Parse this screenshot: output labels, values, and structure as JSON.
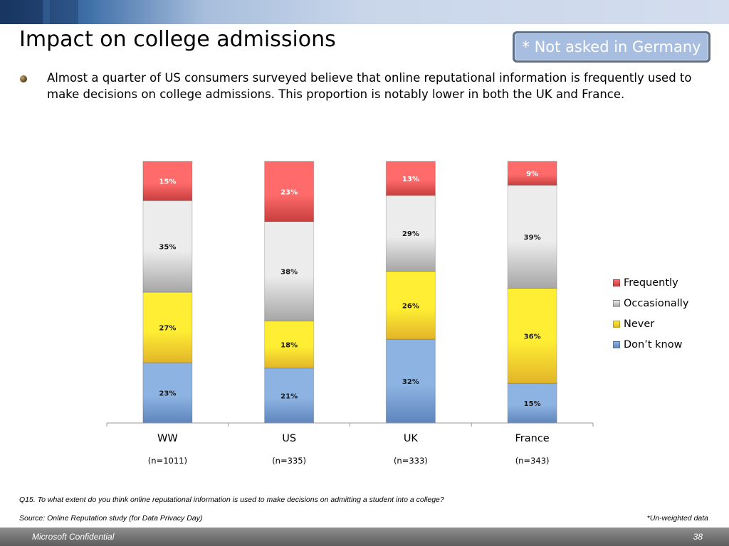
{
  "slide": {
    "title": "Impact on college admissions",
    "note": "* Not asked in Germany",
    "bullet": "Almost a quarter of US consumers surveyed believe that online reputational information is frequently used to make decisions on college admissions. This proportion is notably lower in both the UK and France.",
    "question": "Q15. To what extent do you think online reputational information is used to make decisions on admitting a student into a college?",
    "source": "Source: Online Reputation study (for Data Privacy Day)",
    "weighting_note": "*Un-weighted data",
    "footer_left": "Microsoft Confidential",
    "page_number": "38"
  },
  "chart_data": {
    "type": "bar",
    "stacked": true,
    "percent_stacked": true,
    "categories": [
      "WW",
      "US",
      "UK",
      "France"
    ],
    "sample_sizes": [
      "(n=1011)",
      "(n=335)",
      "(n=333)",
      "(n=343)"
    ],
    "series": [
      {
        "name": "Don’t know",
        "values": [
          23,
          21,
          32,
          15
        ],
        "color": "#8db3e2",
        "color_dark": "#5f86bd"
      },
      {
        "name": "Never",
        "values": [
          27,
          18,
          26,
          36
        ],
        "color": "#ffee33",
        "color_dark": "#e2b52a"
      },
      {
        "name": "Occasionally",
        "values": [
          35,
          38,
          29,
          39
        ],
        "color": "#ececec",
        "color_dark": "#a6a6a6"
      },
      {
        "name": "Frequently",
        "values": [
          15,
          23,
          13,
          9
        ],
        "color": "#ff6b6b",
        "color_dark": "#c83e3e"
      }
    ],
    "legend_order": [
      "Frequently",
      "Occasionally",
      "Never",
      "Don’t know"
    ],
    "value_suffix": "%",
    "ylim": [
      0,
      100
    ],
    "legend_position": "right",
    "grid": false
  }
}
